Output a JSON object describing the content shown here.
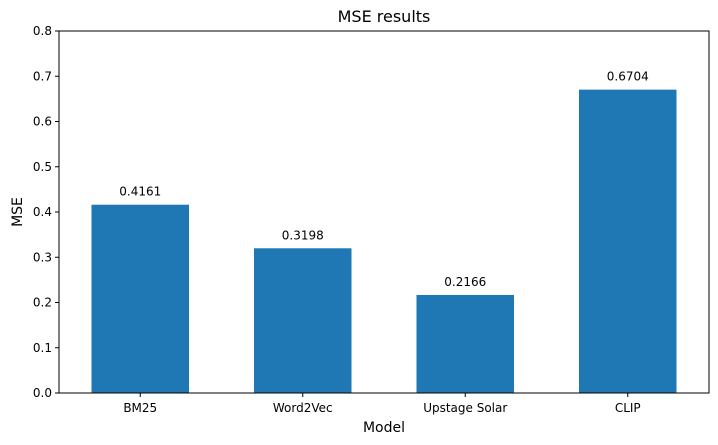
{
  "chart_data": {
    "type": "bar",
    "title": "MSE results",
    "xlabel": "Model",
    "ylabel": "MSE",
    "categories": [
      "BM25",
      "Word2Vec",
      "Upstage Solar",
      "CLIP"
    ],
    "values": [
      0.4161,
      0.3198,
      0.2166,
      0.6704
    ],
    "value_labels": [
      "0.4161",
      "0.3198",
      "0.2166",
      "0.6704"
    ],
    "ylim": [
      0,
      0.8
    ],
    "yticks": [
      0.0,
      0.1,
      0.2,
      0.3,
      0.4,
      0.5,
      0.6,
      0.7,
      0.8
    ],
    "ytick_labels": [
      "0.0",
      "0.1",
      "0.2",
      "0.3",
      "0.4",
      "0.5",
      "0.6",
      "0.7",
      "0.8"
    ],
    "bar_color": "#1f77b4",
    "grid": false,
    "legend": "none"
  }
}
